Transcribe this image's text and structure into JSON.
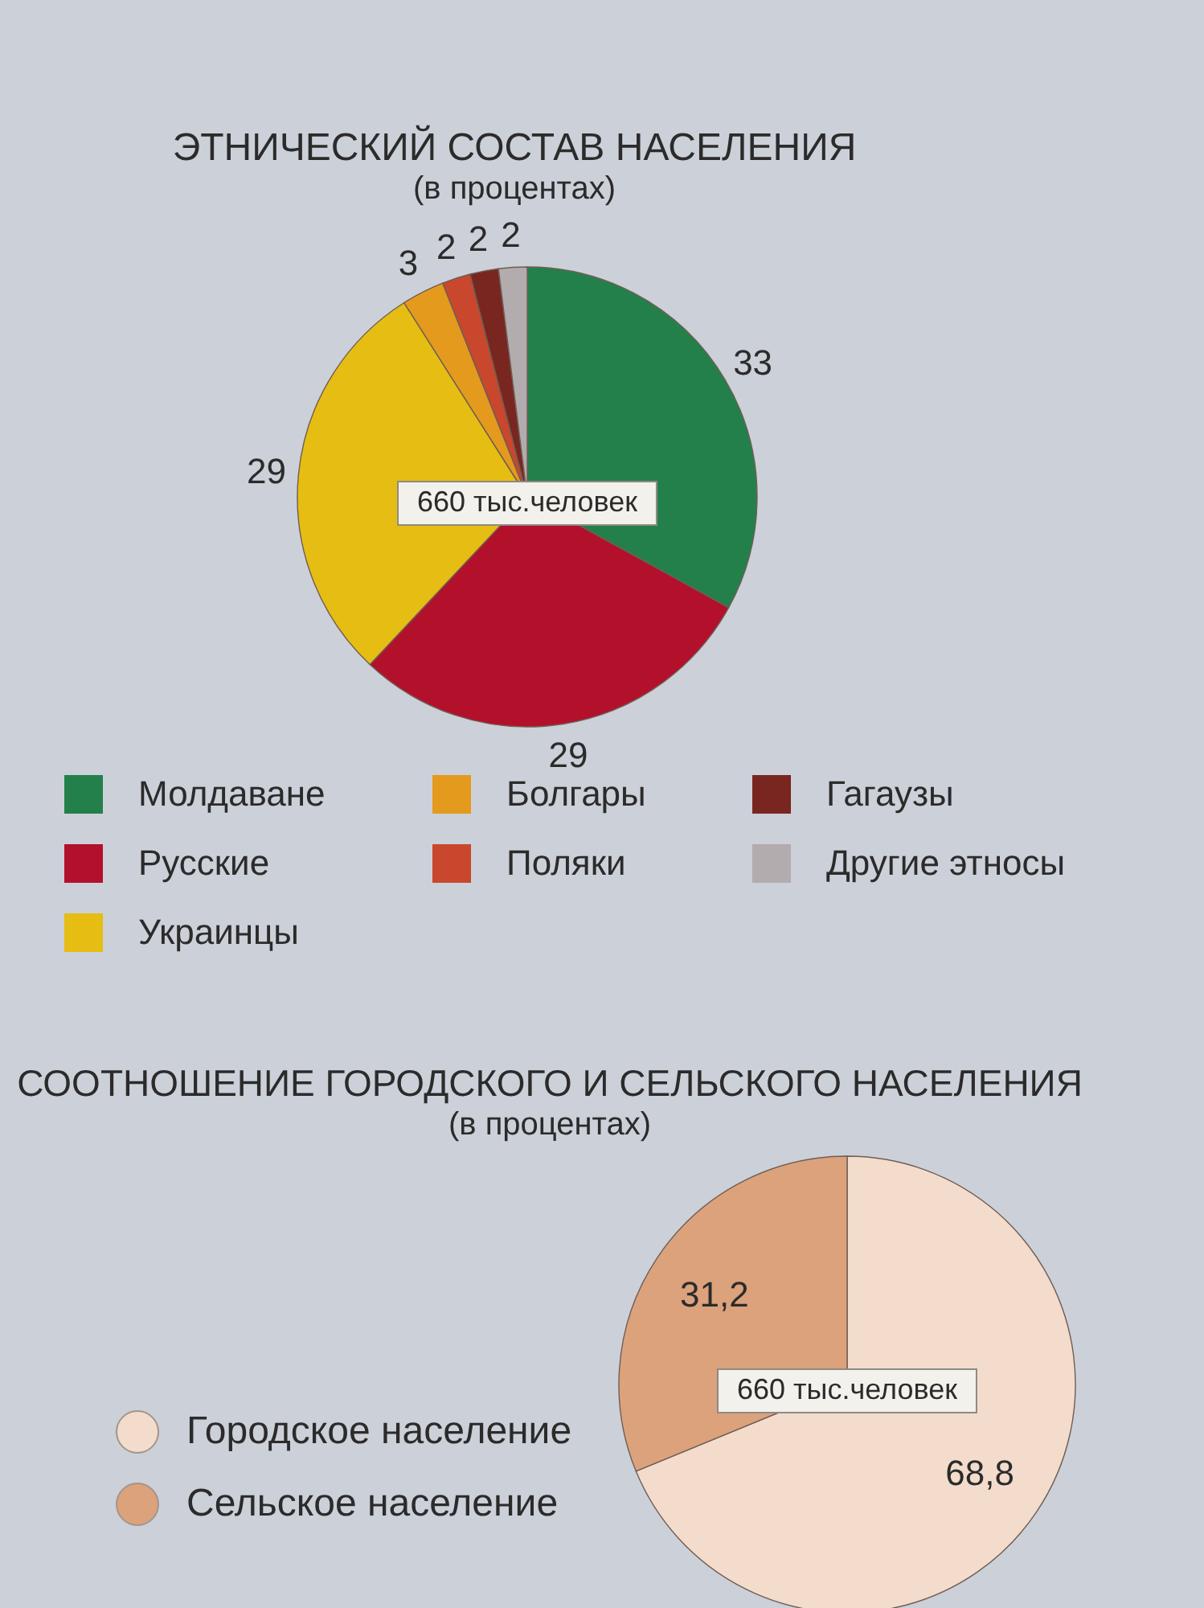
{
  "chart_data": [
    {
      "type": "pie",
      "title": "ЭТНИЧЕСКИЙ СОСТАВ НАСЕЛЕНИЯ",
      "subtitle": "(в процентах)",
      "categories": [
        "Молдаване",
        "Русские",
        "Украинцы",
        "Болгары",
        "Поляки",
        "Гагаузы",
        "Другие этносы"
      ],
      "values": [
        33,
        29,
        29,
        3,
        2,
        2,
        2
      ],
      "colors": [
        "#23804a",
        "#b3102c",
        "#e6bd12",
        "#e49a1c",
        "#c9472c",
        "#7a2620",
        "#b2acae"
      ],
      "data_labels": true,
      "legend": "bottom",
      "annotations": [
        "660 тыс.человек"
      ]
    },
    {
      "type": "pie",
      "title": "СООТНОШЕНИЕ ГОРОДСКОГО И СЕЛЬСКОГО НАСЕЛЕНИЯ",
      "subtitle": "(в процентах)",
      "categories": [
        "Городское население",
        "Сельское население"
      ],
      "values": [
        68.8,
        31.2
      ],
      "colors": [
        "#f3dccb",
        "#dba27c"
      ],
      "value_labels": [
        "68,8",
        "31,2"
      ],
      "legend": "left",
      "annotations": [
        "660 тыс.человек"
      ]
    }
  ]
}
